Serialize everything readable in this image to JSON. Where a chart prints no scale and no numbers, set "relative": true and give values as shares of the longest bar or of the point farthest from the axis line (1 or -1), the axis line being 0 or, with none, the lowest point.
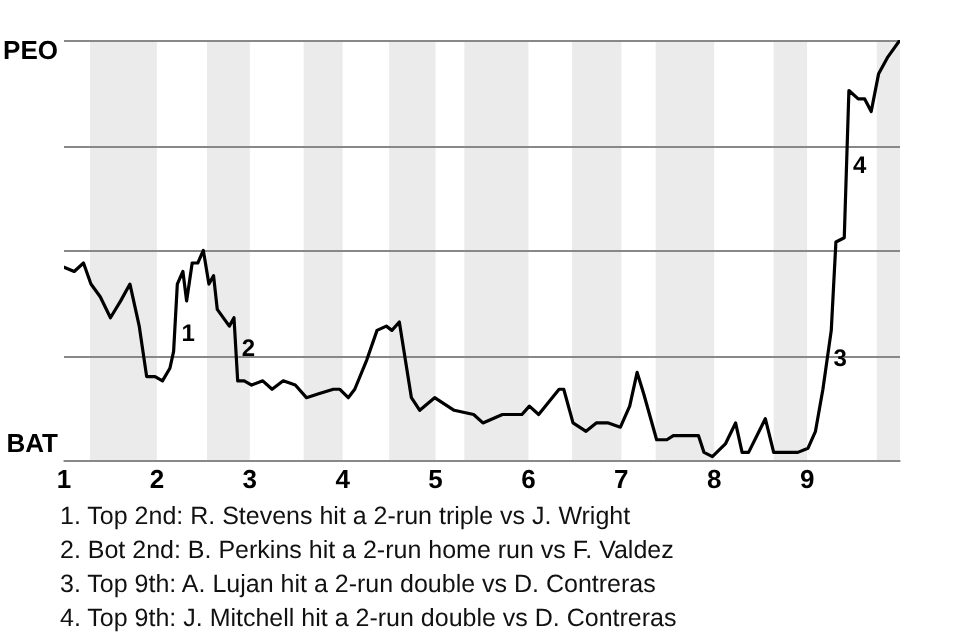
{
  "chart_data": {
    "type": "line",
    "relative": true,
    "x": [
      1,
      1.11,
      1.21,
      1.29,
      1.39,
      1.5,
      1.61,
      1.71,
      1.81,
      1.89,
      1.98,
      2.06,
      2.14,
      2.18,
      2.22,
      2.28,
      2.32,
      2.38,
      2.44,
      2.5,
      2.56,
      2.61,
      2.65,
      2.78,
      2.83,
      2.87,
      2.94,
      3.02,
      3.14,
      3.24,
      3.36,
      3.49,
      3.61,
      3.75,
      3.9,
      3.97,
      4.06,
      4.13,
      4.26,
      4.37,
      4.47,
      4.53,
      4.61,
      4.74,
      4.83,
      4.99,
      5.2,
      5.41,
      5.51,
      5.72,
      5.93,
      6.01,
      6.11,
      6.33,
      6.38,
      6.48,
      6.62,
      6.73,
      6.86,
      6.99,
      7.09,
      7.17,
      7.24,
      7.38,
      7.49,
      7.56,
      7.64,
      7.83,
      7.89,
      7.98,
      8.12,
      8.23,
      8.3,
      8.37,
      8.55,
      8.64,
      8.76,
      8.9,
      9.01,
      9.09,
      9.17,
      9.26,
      9.31,
      9.4,
      9.45,
      9.55,
      9.62,
      9.69,
      9.77,
      9.87,
      10
    ],
    "series": [
      {
        "color": "#000000",
        "values": [
          0.46,
          0.45,
          0.47,
          0.42,
          0.39,
          0.34,
          0.38,
          0.42,
          0.32,
          0.2,
          0.2,
          0.19,
          0.22,
          0.26,
          0.42,
          0.45,
          0.38,
          0.47,
          0.47,
          0.5,
          0.42,
          0.44,
          0.36,
          0.32,
          0.34,
          0.19,
          0.19,
          0.18,
          0.19,
          0.17,
          0.19,
          0.18,
          0.15,
          0.16,
          0.17,
          0.17,
          0.15,
          0.17,
          0.24,
          0.31,
          0.32,
          0.31,
          0.33,
          0.15,
          0.12,
          0.15,
          0.12,
          0.11,
          0.09,
          0.11,
          0.11,
          0.13,
          0.11,
          0.17,
          0.17,
          0.09,
          0.07,
          0.09,
          0.09,
          0.08,
          0.13,
          0.21,
          0.16,
          0.05,
          0.05,
          0.06,
          0.06,
          0.06,
          0.02,
          0.01,
          0.04,
          0.09,
          0.02,
          0.02,
          0.1,
          0.02,
          0.02,
          0.02,
          0.03,
          0.07,
          0.17,
          0.31,
          0.52,
          0.53,
          0.88,
          0.86,
          0.86,
          0.83,
          0.92,
          0.96,
          1
        ]
      }
    ],
    "xlim": [
      1,
      10
    ],
    "xticks": [
      1,
      2,
      3,
      4,
      5,
      6,
      7,
      8,
      9
    ],
    "grid": "y",
    "bands": [
      {
        "axis": "x",
        "from": 1.28,
        "to": 2,
        "color": "#ebebeb"
      },
      {
        "axis": "x",
        "from": 2.54,
        "to": 3,
        "color": "#ebebeb"
      },
      {
        "axis": "x",
        "from": 3.58,
        "to": 4,
        "color": "#ebebeb"
      },
      {
        "axis": "x",
        "from": 4.5,
        "to": 5,
        "color": "#ebebeb"
      },
      {
        "axis": "x",
        "from": 5.31,
        "to": 6,
        "color": "#ebebeb"
      },
      {
        "axis": "x",
        "from": 6.47,
        "to": 7,
        "color": "#ebebeb"
      },
      {
        "axis": "x",
        "from": 7.37,
        "to": 8,
        "color": "#ebebeb"
      },
      {
        "axis": "x",
        "from": 8.64,
        "to": 9,
        "color": "#ebebeb"
      },
      {
        "axis": "x",
        "from": 9.75,
        "to": 10,
        "color": "#ebebeb"
      }
    ],
    "annotations": [
      "PEO",
      "BAT",
      {
        "text": "1",
        "x": 2.2,
        "y": 0.3
      },
      {
        "text": "2",
        "x": 2.85,
        "y": 0.265
      },
      {
        "text": "3",
        "x": 9.22,
        "y": 0.24
      },
      {
        "text": "4",
        "x": 9.43,
        "y": 0.7
      },
      "1. Top 2nd: R. Stevens hit a 2-run triple vs J. Wright",
      "2. Bot 2nd: B. Perkins hit a 2-run home run vs F. Valdez",
      "3. Top 9th: A. Lujan hit a 2-run double vs D. Contreras",
      "4. Top 9th: J. Mitchell hit a 2-run double vs D. Contreras"
    ]
  }
}
